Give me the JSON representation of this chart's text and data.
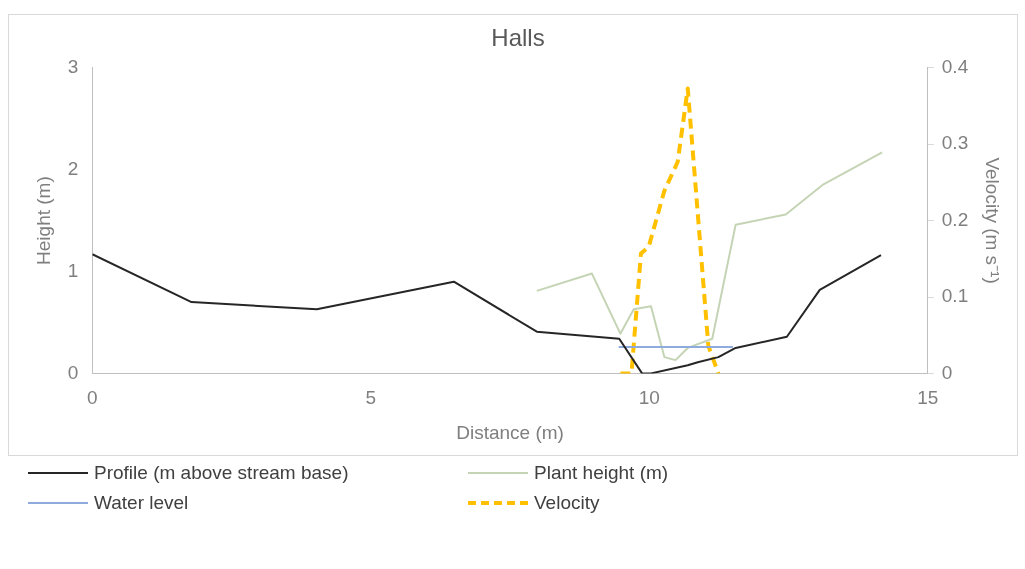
{
  "chart_data": {
    "type": "line",
    "title": "Halls",
    "xlabel": "Distance (m)",
    "ylabel": "Height (m)",
    "y2label": "Velocity (m s⁻¹)",
    "xlim": [
      0,
      15
    ],
    "xticks": [
      0,
      5,
      10,
      15
    ],
    "ylim": [
      0,
      3
    ],
    "yticks": [
      0,
      1,
      2,
      3
    ],
    "y2lim": [
      0,
      0.4
    ],
    "y2ticks": [
      0,
      0.1,
      0.2,
      0.3,
      0.4
    ],
    "grid": false,
    "legend": "bottom",
    "marker": "none",
    "series": [
      {
        "name": "Profile (m above stream base)",
        "color": "#262626",
        "x": [
          0,
          1.78,
          4.03,
          6.49,
          7.98,
          9.46,
          9.87,
          10.03,
          10.69,
          10.87,
          11.24,
          11.55,
          12.47,
          13.06,
          14.16
        ],
        "values": [
          1.17,
          0.7,
          0.63,
          0.9,
          0.41,
          0.34,
          0.0,
          0.0,
          0.08,
          0.11,
          0.16,
          0.25,
          0.36,
          0.82,
          1.16
        ]
      },
      {
        "name": "Water level",
        "color": "#8faadc",
        "x": [
          9.45,
          11.5
        ],
        "values": [
          0.26,
          0.26
        ]
      },
      {
        "name": "Plant height (m)",
        "color": "#c5d4b5",
        "x": [
          7.98,
          8.97,
          9.48,
          9.72,
          10.03,
          10.27,
          10.47,
          10.69,
          11.13,
          11.55,
          12.45,
          13.11,
          14.18
        ],
        "values": [
          0.81,
          0.98,
          0.39,
          0.63,
          0.66,
          0.16,
          0.13,
          0.25,
          0.34,
          1.46,
          1.56,
          1.85,
          2.17
        ]
      },
      {
        "name": "Velocity",
        "color": "#ffc000",
        "axis": "y2",
        "line_style": "dashed",
        "x": [
          9.48,
          9.68,
          9.85,
          9.99,
          10.27,
          10.51,
          10.69,
          11.06,
          11.24
        ],
        "values": [
          0,
          0,
          0.157,
          0.166,
          0.239,
          0.277,
          0.373,
          0.036,
          0
        ]
      }
    ]
  }
}
